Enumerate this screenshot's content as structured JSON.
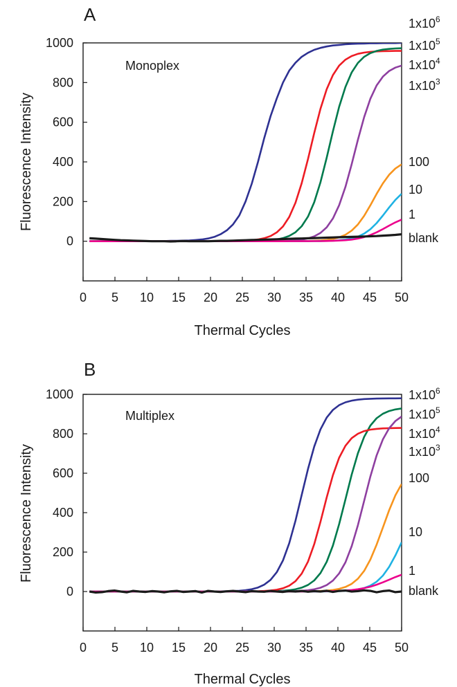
{
  "figure": {
    "panels": [
      {
        "label": "A",
        "annotation": "Monoplex",
        "xlabel": "Thermal Cycles",
        "ylabel": "Fluorescence Intensity",
        "legend": [
          {
            "base": "1x10",
            "exp": "6"
          },
          {
            "base": "1x10",
            "exp": "5"
          },
          {
            "base": "1x10",
            "exp": "4"
          },
          {
            "base": "1x10",
            "exp": "3"
          },
          {
            "base": "100",
            "exp": ""
          },
          {
            "base": "10",
            "exp": ""
          },
          {
            "base": "1",
            "exp": ""
          },
          {
            "base": "blank",
            "exp": ""
          }
        ]
      },
      {
        "label": "B",
        "annotation": "Multiplex",
        "xlabel": "Thermal Cycles",
        "ylabel": "Fluorescence Intensity",
        "legend": [
          {
            "base": "1x10",
            "exp": "6"
          },
          {
            "base": "1x10",
            "exp": "5"
          },
          {
            "base": "1x10",
            "exp": "4"
          },
          {
            "base": "1x10",
            "exp": "3"
          },
          {
            "base": "100",
            "exp": ""
          },
          {
            "base": "10",
            "exp": ""
          },
          {
            "base": "1",
            "exp": ""
          },
          {
            "base": "blank",
            "exp": ""
          }
        ]
      }
    ]
  },
  "chart_data": [
    {
      "type": "line",
      "title": "Monoplex",
      "xlabel": "Thermal Cycles",
      "ylabel": "Fluorescence Intensity",
      "xlim": [
        0,
        50
      ],
      "ylim": [
        -200,
        1000
      ],
      "xticks": [
        0,
        5,
        10,
        15,
        20,
        25,
        30,
        35,
        40,
        45,
        50
      ],
      "yticks": [
        0,
        200,
        400,
        600,
        800,
        1000
      ],
      "grid": false,
      "legend_position": "right",
      "series": [
        {
          "name": "1x10^6",
          "color": "#2e3192",
          "baseline": 0,
          "plateau": 1000,
          "midpoint": 32.5,
          "slope": 0.55,
          "values": [
            0,
            0,
            0,
            0,
            0,
            0,
            0,
            0,
            0,
            0,
            1,
            1,
            1,
            2,
            2,
            3,
            4,
            6,
            9,
            14,
            22,
            35,
            55,
            85,
            130,
            200,
            290,
            400,
            520,
            630,
            720,
            800,
            860,
            900,
            930,
            950,
            965,
            975,
            982,
            987,
            990,
            993,
            995,
            996,
            997,
            998,
            998,
            999,
            999,
            999,
            1000
          ]
        },
        {
          "name": "1x10^5",
          "color": "#ed1c24",
          "baseline": 0,
          "plateau": 960,
          "midpoint": 35.5,
          "slope": 0.55
        },
        {
          "name": "1x10^4",
          "color": "#007a4d",
          "baseline": 0,
          "plateau": 975,
          "midpoint": 38.5,
          "slope": 0.55
        },
        {
          "name": "1x10^3",
          "color": "#8e3fa0",
          "baseline": 0,
          "plateau": 900,
          "midpoint": 42.5,
          "slope": 0.55
        },
        {
          "name": "100",
          "color": "#f7941d",
          "baseline": 0,
          "plateau": 420,
          "midpoint": 45.5,
          "slope": 0.55
        },
        {
          "name": "10",
          "color": "#1fb2e3",
          "baseline": 0,
          "plateau": 300,
          "midpoint": 47.5,
          "slope": 0.55
        },
        {
          "name": "1",
          "color": "#ec008c",
          "baseline": 0,
          "plateau": 140,
          "midpoint": 47.5,
          "slope": 0.5
        },
        {
          "name": "blank",
          "color": "#1a1a1a",
          "values": [
            15,
            13,
            11,
            9,
            7,
            5,
            4,
            3,
            2,
            1,
            0,
            0,
            0,
            -1,
            0,
            1,
            0,
            0,
            0,
            0,
            1,
            2,
            2,
            3,
            4,
            5,
            6,
            7,
            8,
            9,
            10,
            11,
            12,
            13,
            14,
            15,
            16,
            17,
            18,
            19,
            20,
            21,
            22,
            23,
            24,
            25,
            26,
            28,
            30,
            32,
            35
          ]
        }
      ]
    },
    {
      "type": "line",
      "title": "Multiplex",
      "xlabel": "Thermal Cycles",
      "ylabel": "Fluorescence Intensity",
      "xlim": [
        0,
        50
      ],
      "ylim": [
        -200,
        1000
      ],
      "xticks": [
        0,
        5,
        10,
        15,
        20,
        25,
        30,
        35,
        40,
        45,
        50
      ],
      "yticks": [
        0,
        200,
        400,
        600,
        800,
        1000
      ],
      "grid": false,
      "legend_position": "right",
      "series": [
        {
          "name": "1x10^6",
          "color": "#2e3192",
          "baseline": 0,
          "plateau": 980,
          "midpoint": 34.0,
          "slope": 0.55
        },
        {
          "name": "1x10^5",
          "color": "#007a4d",
          "baseline": 0,
          "plateau": 935,
          "midpoint": 41.0,
          "slope": 0.55
        },
        {
          "name": "1x10^4",
          "color": "#ed1c24",
          "baseline": 0,
          "plateau": 830,
          "midpoint": 37.5,
          "slope": 0.6
        },
        {
          "name": "1x10^3",
          "color": "#8e3fa0",
          "baseline": 0,
          "plateau": 920,
          "midpoint": 44.0,
          "slope": 0.55
        },
        {
          "name": "100",
          "color": "#f7941d",
          "baseline": 0,
          "plateau": 650,
          "midpoint": 47.0,
          "slope": 0.55
        },
        {
          "name": "10",
          "color": "#1fb2e3",
          "baseline": 0,
          "plateau": 500,
          "midpoint": 50.0,
          "slope": 0.55
        },
        {
          "name": "1",
          "color": "#ec008c",
          "baseline": 0,
          "plateau": 120,
          "midpoint": 48.0,
          "slope": 0.45
        },
        {
          "name": "blank",
          "color": "#1a1a1a",
          "values": [
            0,
            -5,
            -3,
            2,
            5,
            0,
            -4,
            3,
            0,
            -2,
            2,
            0,
            -4,
            1,
            3,
            -2,
            0,
            2,
            -5,
            3,
            0,
            -2,
            1,
            3,
            0,
            -3,
            2,
            0,
            -1,
            3,
            0,
            -2,
            2,
            0,
            3,
            -1,
            2,
            0,
            4,
            -2,
            3,
            5,
            0,
            2,
            6,
            3,
            -4,
            2,
            5,
            -3,
            0
          ]
        }
      ]
    }
  ]
}
